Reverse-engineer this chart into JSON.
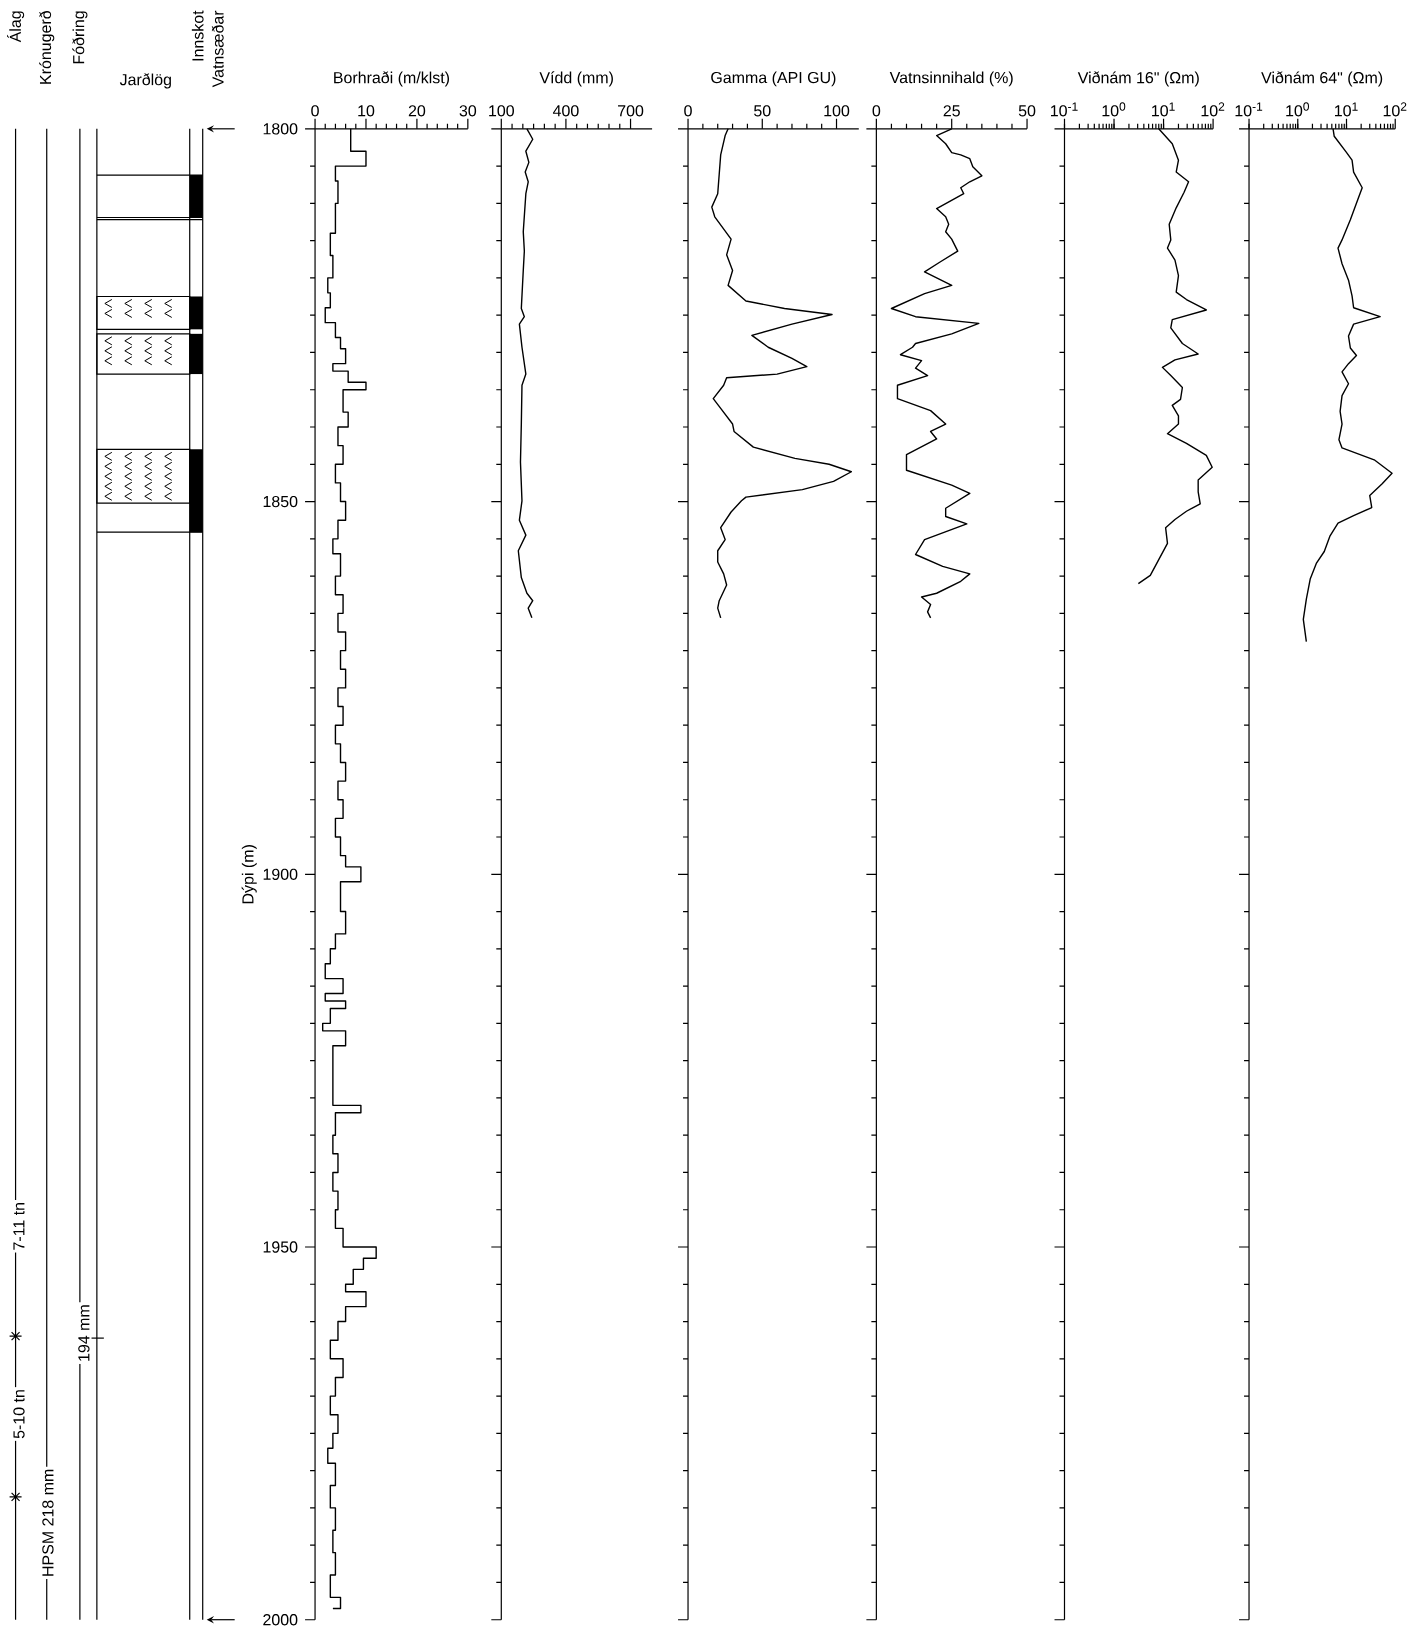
{
  "chart_data": [
    {
      "type": "other",
      "annotations": [
        "Álag",
        "Krónugerð",
        "Fóðring",
        "Jarðlög",
        "Innskot",
        "Vatnsæðar",
        "7-11 tn",
        "5-10 tn",
        "HPSM 218 mm",
        "194 mm"
      ]
    },
    {
      "type": "step",
      "xlabel": "Borhraði (m/klst)",
      "ylabel": "Dýpi (m)",
      "xlim": [
        0,
        30
      ],
      "xticks": [
        0,
        10,
        20,
        30
      ],
      "ylim": [
        2000,
        1800
      ],
      "yticks": [
        1800,
        1850,
        1900,
        1950,
        2000
      ],
      "color": "#000000",
      "x": [
        7,
        10,
        4,
        4.5,
        4,
        3,
        3.5,
        2.5,
        3,
        2,
        4,
        5,
        6,
        3.5,
        6.5,
        10,
        5.5,
        6.5,
        4.5,
        5.5,
        4,
        5,
        6,
        4.5,
        3.5,
        5,
        4,
        5.5,
        4.5,
        6,
        5,
        6,
        4.5,
        5.5,
        4,
        5,
        6,
        4.5,
        5.5,
        4,
        5,
        6,
        9,
        5,
        6,
        4,
        3,
        2,
        5.5,
        2,
        6,
        3,
        1.5,
        6,
        3.5,
        9,
        4,
        3.5,
        4.5,
        3.5,
        4.5,
        4,
        5.5,
        12,
        9.5,
        7.5,
        6,
        10,
        6,
        4.5,
        3,
        5.5,
        4,
        3,
        4.5,
        3.5,
        2.5,
        4,
        3,
        4,
        3.5,
        4,
        3,
        5,
        3.5
      ],
      "values": [
        1800,
        1803,
        1805,
        1807,
        1810,
        1814,
        1817,
        1820,
        1822,
        1824,
        1826,
        1828,
        1829.5,
        1831.5,
        1832.5,
        1834,
        1835,
        1838,
        1840,
        1842.5,
        1845,
        1847.5,
        1850,
        1852.5,
        1855,
        1857,
        1860,
        1862.5,
        1865,
        1867.5,
        1870,
        1872.5,
        1875,
        1877.5,
        1880,
        1882.5,
        1885,
        1887.5,
        1890,
        1892.5,
        1895,
        1897.5,
        1899,
        1901,
        1905,
        1908,
        1910,
        1912,
        1914,
        1916,
        1917,
        1918,
        1920,
        1921,
        1923,
        1931,
        1932,
        1935,
        1937.5,
        1940,
        1942.5,
        1945,
        1947.5,
        1950,
        1951.5,
        1953,
        1955,
        1956,
        1958,
        1960,
        1962.5,
        1965,
        1967.5,
        1970,
        1972.5,
        1975,
        1977,
        1979,
        1982,
        1985,
        1988,
        1991,
        1994,
        1997,
        1998.5
      ]
    },
    {
      "type": "line",
      "xlabel": "Vídd (mm)",
      "xlim": [
        100,
        800
      ],
      "xticks": [
        100,
        400,
        700
      ],
      "ylim": [
        2000,
        1800
      ],
      "yticks": [
        1800,
        1850,
        1900,
        1950,
        2000
      ],
      "tick_labels": "x",
      "color": "#000000",
      "x": [
        219,
        246,
        214,
        228,
        211,
        225,
        214,
        202,
        207,
        202,
        193,
        207,
        184,
        196,
        214,
        196,
        193,
        189,
        196,
        184,
        214,
        179,
        193,
        219,
        246,
        225,
        242
      ],
      "values": [
        1800,
        1801.4,
        1803,
        1804.5,
        1805.8,
        1807.1,
        1808.7,
        1813.8,
        1816.4,
        1819,
        1824.1,
        1825.2,
        1826.2,
        1829.3,
        1832.9,
        1834.4,
        1839.6,
        1844.7,
        1849.9,
        1852.5,
        1854.5,
        1856.6,
        1860.2,
        1862.3,
        1863.3,
        1864.3,
        1865.6
      ]
    },
    {
      "type": "line",
      "xlabel": "Gamma (API GU)",
      "xlim": [
        0,
        115
      ],
      "xticks": [
        0,
        50,
        100
      ],
      "ylim": [
        2000,
        1800
      ],
      "yticks": [
        1800,
        1850,
        1900,
        1950,
        2000
      ],
      "tick_labels": "x",
      "color": "#000000",
      "x": [
        27,
        25,
        22,
        21,
        20,
        16,
        18,
        29,
        26,
        30,
        27,
        39,
        65,
        97,
        70,
        43,
        54,
        70,
        80,
        60,
        26,
        24,
        17,
        22,
        30,
        31,
        44,
        72,
        95,
        110,
        98,
        77,
        39,
        36,
        29,
        22,
        25,
        20,
        20,
        24,
        26,
        21,
        20,
        22
      ],
      "values": [
        1800,
        1800.9,
        1803.5,
        1806.1,
        1808.7,
        1810.5,
        1811.8,
        1814.8,
        1816.9,
        1819,
        1821,
        1823.1,
        1824.1,
        1824.9,
        1826.2,
        1827.7,
        1829.3,
        1830.8,
        1831.9,
        1832.9,
        1833.4,
        1834.4,
        1836.2,
        1837.5,
        1839.6,
        1840.6,
        1842.7,
        1844.2,
        1845,
        1846,
        1847.3,
        1848.4,
        1849.4,
        1849.9,
        1851.4,
        1853.5,
        1855.1,
        1856.6,
        1858.1,
        1859.7,
        1861.2,
        1863.3,
        1864.3,
        1865.6
      ]
    },
    {
      "type": "line",
      "xlabel": "Vatnsinnihald (%)",
      "xlim": [
        0,
        50
      ],
      "xticks": [
        0,
        25,
        50
      ],
      "ylim": [
        2000,
        1800
      ],
      "yticks": [
        1800,
        1850,
        1900,
        1950,
        2000
      ],
      "tick_labels": "x",
      "color": "#000000",
      "x": [
        25,
        20,
        23,
        25,
        28,
        31,
        32,
        35,
        31,
        28,
        29,
        20,
        23,
        24,
        23,
        25,
        27,
        21,
        16,
        25,
        16,
        5,
        13,
        34,
        25,
        13,
        12,
        8,
        15,
        13,
        17,
        7,
        7,
        18,
        23,
        18,
        20,
        10,
        10,
        25,
        31,
        23,
        23,
        30,
        16,
        13,
        22,
        31,
        28,
        20,
        15,
        18,
        17,
        18
      ],
      "values": [
        1800,
        1800.9,
        1802,
        1803.2,
        1803.5,
        1804,
        1805.1,
        1806.3,
        1807.1,
        1807.9,
        1808.7,
        1810.7,
        1811.8,
        1812.8,
        1813.8,
        1814.8,
        1816.4,
        1817.9,
        1819.2,
        1821,
        1822.1,
        1824.1,
        1825.2,
        1826.1,
        1827.5,
        1828.8,
        1829.3,
        1830.3,
        1831.1,
        1832.1,
        1833.1,
        1834.4,
        1836.2,
        1837.8,
        1839.6,
        1840.6,
        1841.6,
        1843.7,
        1845.8,
        1847.8,
        1848.9,
        1850.9,
        1852,
        1853,
        1855.1,
        1857.1,
        1858.7,
        1859.7,
        1860.7,
        1862.3,
        1862.8,
        1863.8,
        1864.8,
        1865.6
      ]
    },
    {
      "type": "line",
      "xlabel": "Viðnám 16\" (Ωm)",
      "log": "x",
      "xlim": [
        0.1,
        100
      ],
      "xticks": [
        {
          "value": 0.1,
          "label": "10$^{-1}$"
        },
        {
          "value": 1,
          "label": "10$^{0}$"
        },
        {
          "value": 10,
          "label": "10$^{1}$"
        },
        {
          "value": 100,
          "label": "10$^{2}$"
        }
      ],
      "ylim": [
        2000,
        1800
      ],
      "yticks": [
        1800,
        1850,
        1900,
        1950,
        2000
      ],
      "tick_labels": "x",
      "color": "#000000",
      "x": [
        8,
        15,
        20,
        18,
        32,
        26,
        18,
        13,
        14,
        12,
        17,
        20,
        18,
        29,
        73,
        15,
        14,
        24,
        50,
        17,
        9.5,
        14,
        24,
        22,
        15,
        20,
        20,
        12,
        29,
        73,
        96,
        50,
        50,
        55,
        29,
        17,
        11,
        12,
        8,
        5.4,
        3.1
      ],
      "values": [
        1800,
        1802,
        1804.2,
        1805.8,
        1807.1,
        1808.5,
        1810.6,
        1812.8,
        1814.9,
        1816,
        1817.6,
        1819.7,
        1821.9,
        1822.9,
        1824.3,
        1825.6,
        1826.7,
        1828.8,
        1830.2,
        1831,
        1832,
        1833.1,
        1834.7,
        1836.3,
        1837.1,
        1838.5,
        1839.6,
        1840.9,
        1842.2,
        1843.8,
        1845.4,
        1847.1,
        1848.7,
        1850.3,
        1851.3,
        1852.4,
        1853.5,
        1855.6,
        1857.8,
        1859.9,
        1861
      ]
    },
    {
      "type": "line",
      "xlabel": "Viðnám 64\" (Ωm)",
      "log": "x",
      "xlim": [
        0.1,
        100
      ],
      "xticks": [
        {
          "value": 0.1,
          "label": "10$^{-1}$"
        },
        {
          "value": 1,
          "label": "10$^{0}$"
        },
        {
          "value": 10,
          "label": "10$^{1}$"
        },
        {
          "value": 100,
          "label": "10$^{2}$"
        }
      ],
      "ylim": [
        2000,
        1800
      ],
      "yticks": [
        1800,
        1850,
        1900,
        1950,
        2000
      ],
      "tick_labels": "x",
      "color": "#000000",
      "x": [
        5.3,
        5.6,
        9.8,
        13,
        14,
        21,
        17,
        12,
        8.1,
        6.7,
        8.1,
        11,
        13,
        14,
        49,
        14,
        11,
        12,
        16,
        11,
        8.1,
        11,
        8.1,
        7.4,
        8.1,
        7,
        8.1,
        37,
        86,
        54,
        30,
        33,
        14,
        6.7,
        4.6,
        3.5,
        2.4,
        1.8,
        1.5,
        1.3,
        1.5
      ],
      "values": [
        1800,
        1801,
        1803.1,
        1804.2,
        1805.8,
        1807.9,
        1809.5,
        1812.2,
        1814.9,
        1816,
        1818.1,
        1820.3,
        1822.4,
        1824,
        1825.2,
        1826.2,
        1827.8,
        1829.4,
        1830.4,
        1831.5,
        1832.6,
        1834.2,
        1835.8,
        1837.9,
        1839.6,
        1841.7,
        1842.8,
        1844.4,
        1846.2,
        1847.6,
        1849.2,
        1850.8,
        1851.9,
        1852.9,
        1854.6,
        1856.7,
        1858.3,
        1860.4,
        1863.1,
        1865.8,
        1868.8
      ]
    }
  ]
}
